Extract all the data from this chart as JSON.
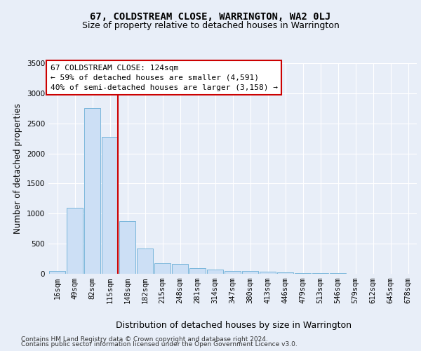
{
  "title": "67, COLDSTREAM CLOSE, WARRINGTON, WA2 0LJ",
  "subtitle": "Size of property relative to detached houses in Warrington",
  "xlabel": "Distribution of detached houses by size in Warrington",
  "ylabel": "Number of detached properties",
  "footer_line1": "Contains HM Land Registry data © Crown copyright and database right 2024.",
  "footer_line2": "Contains public sector information licensed under the Open Government Licence v3.0.",
  "categories": [
    "16sqm",
    "49sqm",
    "82sqm",
    "115sqm",
    "148sqm",
    "182sqm",
    "215sqm",
    "248sqm",
    "281sqm",
    "314sqm",
    "347sqm",
    "380sqm",
    "413sqm",
    "446sqm",
    "479sqm",
    "513sqm",
    "546sqm",
    "579sqm",
    "612sqm",
    "645sqm",
    "678sqm"
  ],
  "values": [
    50,
    1100,
    2750,
    2280,
    870,
    415,
    170,
    165,
    90,
    65,
    50,
    45,
    30,
    20,
    15,
    12,
    8,
    5,
    4,
    3,
    2
  ],
  "bar_color": "#ccdff5",
  "bar_edge_color": "#6aaed6",
  "vline_color": "#cc0000",
  "annotation_text": "67 COLDSTREAM CLOSE: 124sqm\n← 59% of detached houses are smaller (4,591)\n40% of semi-detached houses are larger (3,158) →",
  "annotation_box_color": "#ffffff",
  "annotation_box_edge_color": "#cc0000",
  "ylim": [
    0,
    3500
  ],
  "yticks": [
    0,
    500,
    1000,
    1500,
    2000,
    2500,
    3000,
    3500
  ],
  "bg_color": "#e8eef8",
  "grid_color": "#ffffff",
  "title_fontsize": 10,
  "subtitle_fontsize": 9,
  "xlabel_fontsize": 9,
  "ylabel_fontsize": 8.5,
  "tick_fontsize": 7.5,
  "annotation_fontsize": 8,
  "footer_fontsize": 6.5
}
